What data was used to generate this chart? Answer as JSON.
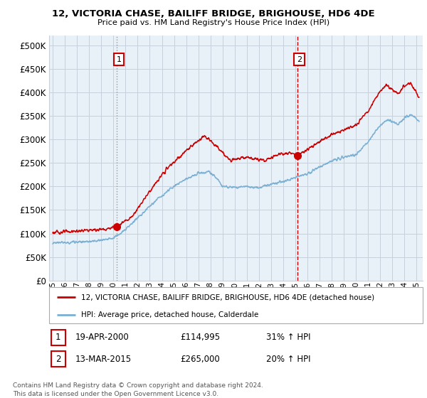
{
  "title": "12, VICTORIA CHASE, BAILIFF BRIDGE, BRIGHOUSE, HD6 4DE",
  "subtitle": "Price paid vs. HM Land Registry's House Price Index (HPI)",
  "background_color": "#ffffff",
  "plot_bg_color": "#e8f0f8",
  "grid_color": "#c8d0dc",
  "property_color": "#cc0000",
  "hpi_color": "#7ab0d4",
  "sale1_vline_color": "#aaaaaa",
  "sale1_vline_style": ":",
  "sale2_vline_color": "#cc0000",
  "sale2_vline_style": "--",
  "ylim": [
    0,
    520000
  ],
  "yticks": [
    0,
    50000,
    100000,
    150000,
    200000,
    250000,
    300000,
    350000,
    400000,
    450000,
    500000
  ],
  "xmin": 1994.7,
  "xmax": 2025.5,
  "xticks": [
    1995,
    1996,
    1997,
    1998,
    1999,
    2000,
    2001,
    2002,
    2003,
    2004,
    2005,
    2006,
    2007,
    2008,
    2009,
    2010,
    2011,
    2012,
    2013,
    2014,
    2015,
    2016,
    2017,
    2018,
    2019,
    2020,
    2021,
    2022,
    2023,
    2024,
    2025
  ],
  "sale1_x": 2000.297,
  "sale1_y": 114995,
  "sale1_label": "1",
  "sale1_date": "19-APR-2000",
  "sale1_price": "£114,995",
  "sale1_pct": "31% ↑ HPI",
  "sale2_x": 2015.192,
  "sale2_y": 265000,
  "sale2_label": "2",
  "sale2_date": "13-MAR-2015",
  "sale2_price": "£265,000",
  "sale2_pct": "20% ↑ HPI",
  "legend_property": "12, VICTORIA CHASE, BAILIFF BRIDGE, BRIGHOUSE, HD6 4DE (detached house)",
  "legend_hpi": "HPI: Average price, detached house, Calderdale",
  "footnote": "Contains HM Land Registry data © Crown copyright and database right 2024.\nThis data is licensed under the Open Government Licence v3.0."
}
